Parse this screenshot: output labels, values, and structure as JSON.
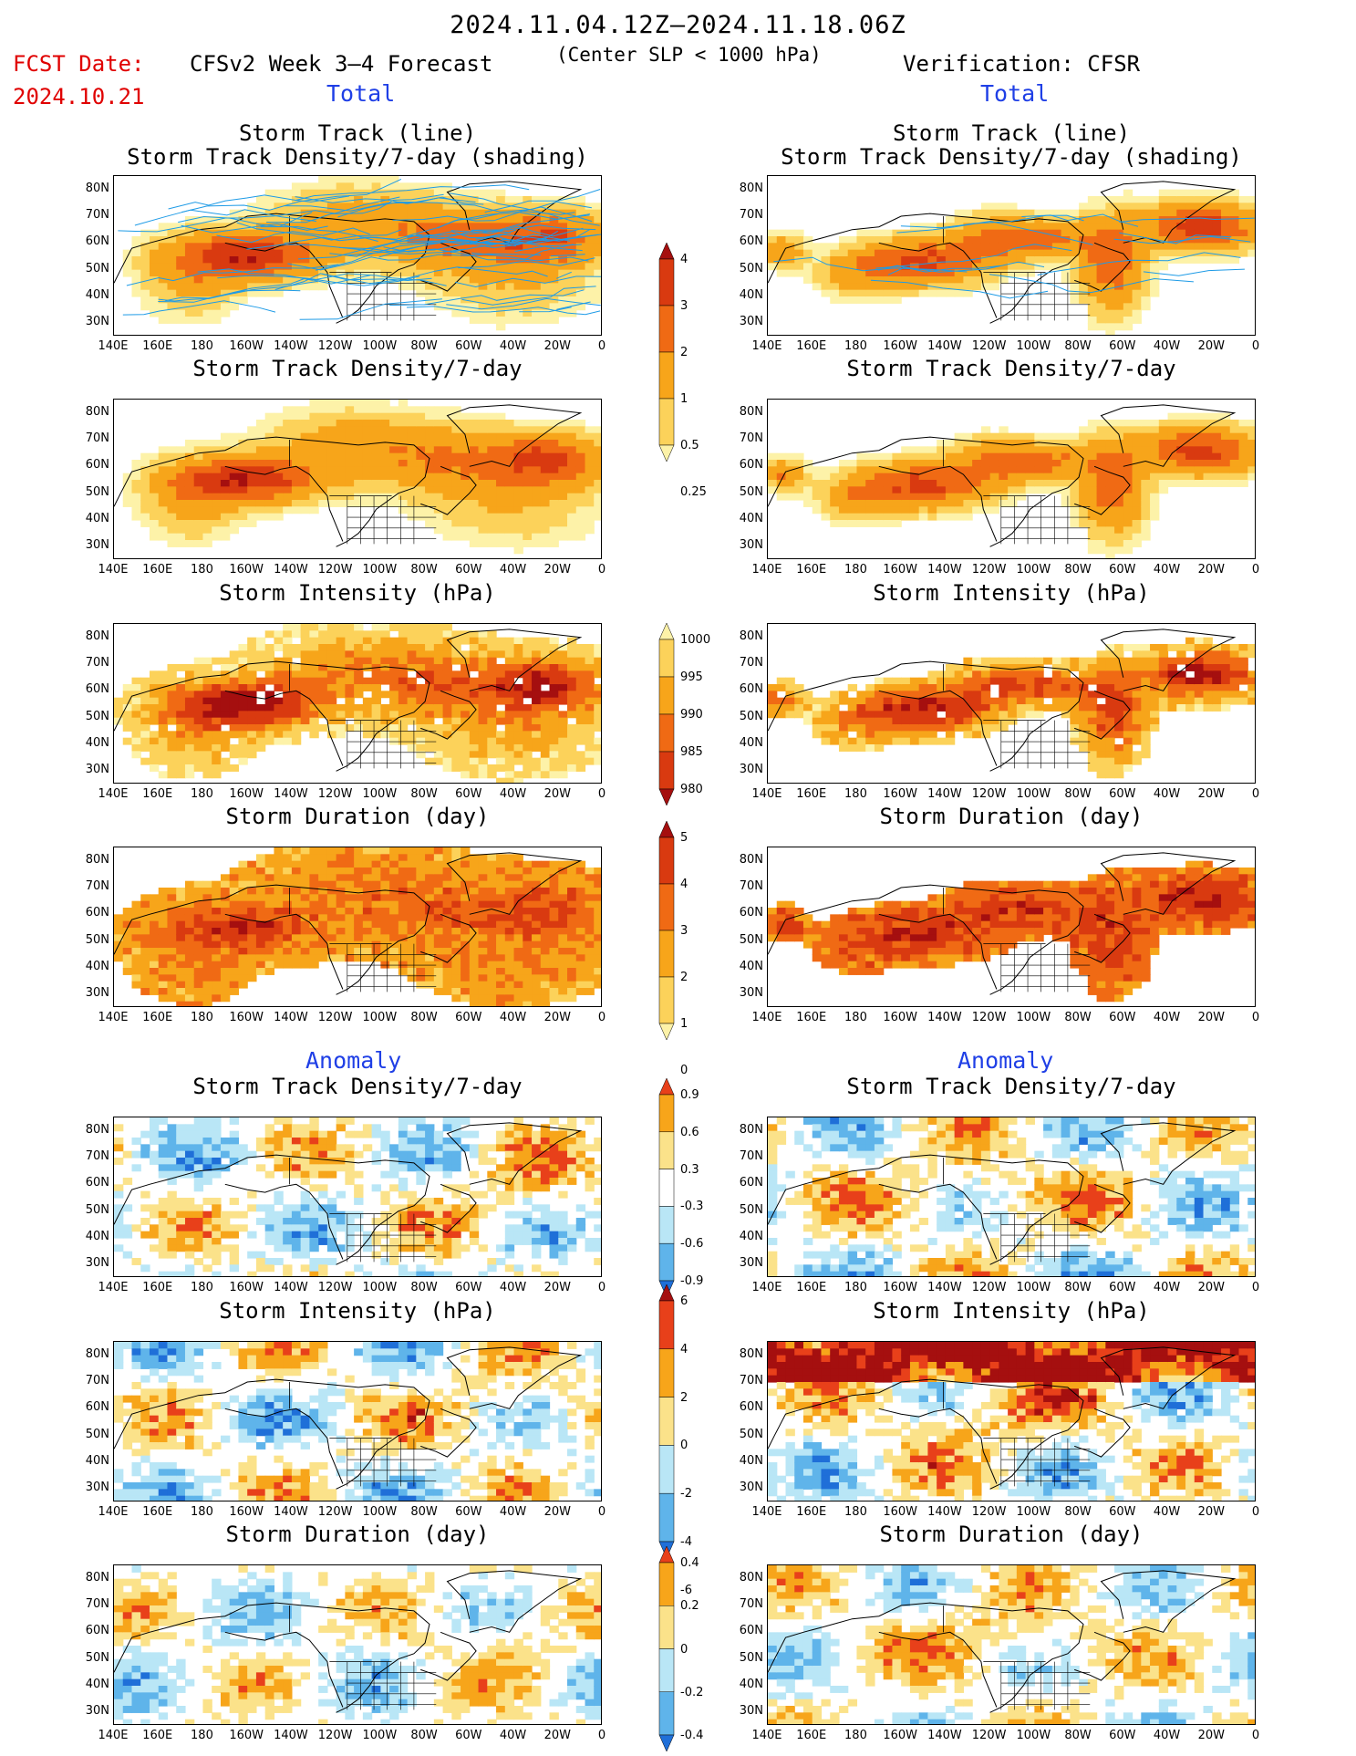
{
  "header": {
    "date_range": "2024.11.04.12Z–2024.11.18.06Z",
    "criterion": "(Center SLP < 1000 hPa)",
    "model_title": "CFSv2 Week 3–4 Forecast",
    "verification": "Verification: CFSR",
    "fcst_label": "FCST Date:",
    "fcst_date": "2024.10.21"
  },
  "sections": {
    "total": "Total",
    "anomaly": "Anomaly"
  },
  "axes": {
    "lat_labels": [
      "80N",
      "70N",
      "60N",
      "50N",
      "40N",
      "30N"
    ],
    "lon_labels": [
      "140E",
      "160E",
      "180",
      "160W",
      "140W",
      "120W",
      "100W",
      "80W",
      "60W",
      "40W",
      "20W",
      "0"
    ]
  },
  "panels": {
    "left": [
      {
        "title_line1": "Storm Track (line)",
        "title_line2": "Storm Track Density/7-day (shading)",
        "field": "density",
        "pattern": "fcst"
      },
      {
        "title_line1": "Storm Track Density/7-day",
        "title_line2": "",
        "field": "density",
        "pattern": "fcst"
      },
      {
        "title_line1": "Storm Intensity (hPa)",
        "title_line2": "",
        "field": "intensity",
        "pattern": "fcst"
      },
      {
        "title_line1": "Storm Duration (day)",
        "title_line2": "",
        "field": "duration",
        "pattern": "fcst"
      },
      {
        "title_line1": "Storm Track Density/7-day",
        "title_line2": "",
        "field": "anom_density",
        "pattern": "fcst"
      },
      {
        "title_line1": "Storm Intensity (hPa)",
        "title_line2": "",
        "field": "anom_intensity",
        "pattern": "fcst"
      },
      {
        "title_line1": "Storm Duration (day)",
        "title_line2": "",
        "field": "anom_duration",
        "pattern": "fcst"
      }
    ],
    "right": [
      {
        "title_line1": "Storm Track (line)",
        "title_line2": "Storm Track Density/7-day (shading)",
        "field": "density",
        "pattern": "obs"
      },
      {
        "title_line1": "Storm Track Density/7-day",
        "title_line2": "",
        "field": "density",
        "pattern": "obs"
      },
      {
        "title_line1": "Storm Intensity (hPa)",
        "title_line2": "",
        "field": "intensity",
        "pattern": "obs"
      },
      {
        "title_line1": "Storm Duration (day)",
        "title_line2": "",
        "field": "duration",
        "pattern": "obs"
      },
      {
        "title_line1": "Storm Track Density/7-day",
        "title_line2": "",
        "field": "anom_density",
        "pattern": "obs"
      },
      {
        "title_line1": "Storm Intensity (hPa)",
        "title_line2": "",
        "field": "anom_intensity",
        "pattern": "obs"
      },
      {
        "title_line1": "Storm Duration (day)",
        "title_line2": "",
        "field": "anom_duration",
        "pattern": "obs"
      }
    ]
  },
  "colorbars": [
    {
      "name": "density",
      "labels": [
        "4",
        "3",
        "2",
        "1",
        "0.5",
        "0.25"
      ],
      "colors": [
        "#a50f0f",
        "#d93a10",
        "#f06a14",
        "#f7a51a",
        "#fcd25a",
        "#fdf2a8"
      ]
    },
    {
      "name": "intensity",
      "labels": [
        "1000",
        "995",
        "990",
        "985",
        "980"
      ],
      "colors": [
        "#fdf2a8",
        "#fcd25a",
        "#f7a51a",
        "#f06a14",
        "#d93a10",
        "#a50f0f"
      ]
    },
    {
      "name": "duration",
      "labels": [
        "5",
        "4",
        "3",
        "2",
        "1",
        "0"
      ],
      "colors": [
        "#a50f0f",
        "#d93a10",
        "#f06a14",
        "#f7a51a",
        "#fcd25a",
        "#fdf2a8"
      ]
    },
    {
      "name": "anom_density",
      "labels": [
        "0.9",
        "0.6",
        "0.3",
        "-0.3",
        "-0.6",
        "-0.9"
      ],
      "colors": [
        "#e8401a",
        "#f7a51a",
        "#fbe28a",
        "#ffffff",
        "#b9e6f6",
        "#5fb4ea",
        "#1f6fd8"
      ]
    },
    {
      "name": "anom_intensity",
      "labels": [
        "6",
        "4",
        "2",
        "0",
        "-2",
        "-4",
        "-6"
      ],
      "colors": [
        "#a50f0f",
        "#e8401a",
        "#f7a51a",
        "#fbe28a",
        "#b9e6f6",
        "#5fb4ea",
        "#1f6fd8"
      ]
    },
    {
      "name": "anom_duration",
      "labels": [
        "0.4",
        "0.2",
        "0",
        "-0.2",
        "-0.4"
      ],
      "colors": [
        "#e8401a",
        "#f7a51a",
        "#fbe28a",
        "#b9e6f6",
        "#5fb4ea",
        "#1f6fd8"
      ]
    }
  ]
}
